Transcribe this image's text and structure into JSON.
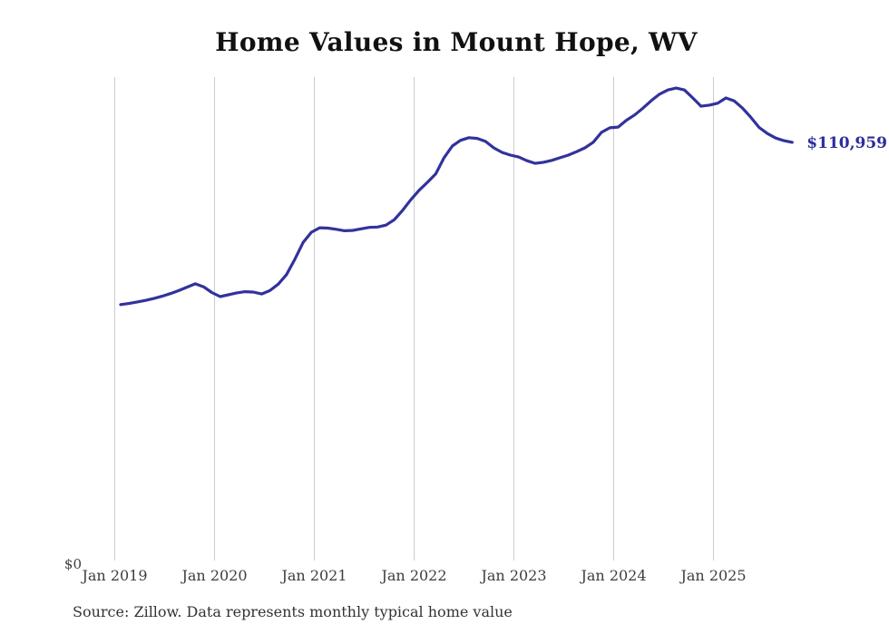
{
  "page": {
    "title": "Home Values in Mount Hope, WV",
    "source_note": "Source: Zillow. Data represents monthly typical home value"
  },
  "chart_data": {
    "type": "line",
    "title": "Home Values in Mount Hope, WV",
    "xlabel": "",
    "ylabel": "",
    "ylim": [
      0,
      128200
    ],
    "grid": "vertical-only",
    "legend": "none",
    "line_color": "#32329c",
    "end_label_color": "#2d2d9c",
    "end_label": "$110,959",
    "last_value": 110959,
    "y_tick_labels": [
      "$0"
    ],
    "x_tick_labels": [
      "Jan 2019",
      "Jan 2020",
      "Jan 2021",
      "Jan 2022",
      "Jan 2023",
      "Jan 2024",
      "Jan 2025"
    ],
    "x": [
      "Jan 2019",
      "Feb 2019",
      "Mar 2019",
      "Apr 2019",
      "May 2019",
      "Jun 2019",
      "Jul 2019",
      "Aug 2019",
      "Sep 2019",
      "Oct 2019",
      "Nov 2019",
      "Dec 2019",
      "Jan 2020",
      "Feb 2020",
      "Mar 2020",
      "Apr 2020",
      "May 2020",
      "Jun 2020",
      "Jul 2020",
      "Aug 2020",
      "Sep 2020",
      "Oct 2020",
      "Nov 2020",
      "Dec 2020",
      "Jan 2021",
      "Feb 2021",
      "Mar 2021",
      "Apr 2021",
      "May 2021",
      "Jun 2021",
      "Jul 2021",
      "Aug 2021",
      "Sep 2021",
      "Oct 2021",
      "Nov 2021",
      "Dec 2021",
      "Jan 2022",
      "Feb 2022",
      "Mar 2022",
      "Apr 2022",
      "May 2022",
      "Jun 2022",
      "Jul 2022",
      "Aug 2022",
      "Sep 2022",
      "Oct 2022",
      "Nov 2022",
      "Dec 2022",
      "Jan 2023",
      "Feb 2023",
      "Mar 2023",
      "Apr 2023",
      "May 2023",
      "Jun 2023",
      "Jul 2023",
      "Aug 2023",
      "Sep 2023",
      "Oct 2023",
      "Nov 2023",
      "Dec 2023",
      "Jan 2024",
      "Feb 2024",
      "Mar 2024",
      "Apr 2024",
      "May 2024",
      "Jun 2024",
      "Jul 2024",
      "Aug 2024",
      "Sep 2024",
      "Oct 2024",
      "Nov 2024",
      "Dec 2024",
      "Jan 2025",
      "Feb 2025",
      "Mar 2025",
      "Apr 2025",
      "May 2025",
      "Jun 2025",
      "Jul 2025",
      "Aug 2025",
      "Sep 2025",
      "Oct 2025"
    ],
    "series": [
      {
        "name": "Monthly typical home value",
        "values": [
          68100,
          68400,
          68800,
          69200,
          69700,
          70300,
          71000,
          71800,
          72700,
          73600,
          72800,
          71300,
          70200,
          70700,
          71200,
          71500,
          71400,
          70900,
          71800,
          73500,
          76000,
          80000,
          84500,
          87200,
          88400,
          88300,
          88000,
          87600,
          87700,
          88100,
          88500,
          88600,
          89100,
          90500,
          93000,
          95800,
          98300,
          100400,
          102600,
          106900,
          110000,
          111500,
          112200,
          112000,
          111200,
          109500,
          108300,
          107600,
          107100,
          106100,
          105400,
          105700,
          106200,
          106900,
          107600,
          108500,
          109500,
          111000,
          113600,
          114800,
          115000,
          116800,
          118200,
          120000,
          122000,
          123700,
          124800,
          125300,
          124800,
          122700,
          120500,
          120800,
          121300,
          122700,
          121900,
          120000,
          117600,
          114900,
          113300,
          112100,
          111400,
          110959
        ]
      }
    ]
  }
}
